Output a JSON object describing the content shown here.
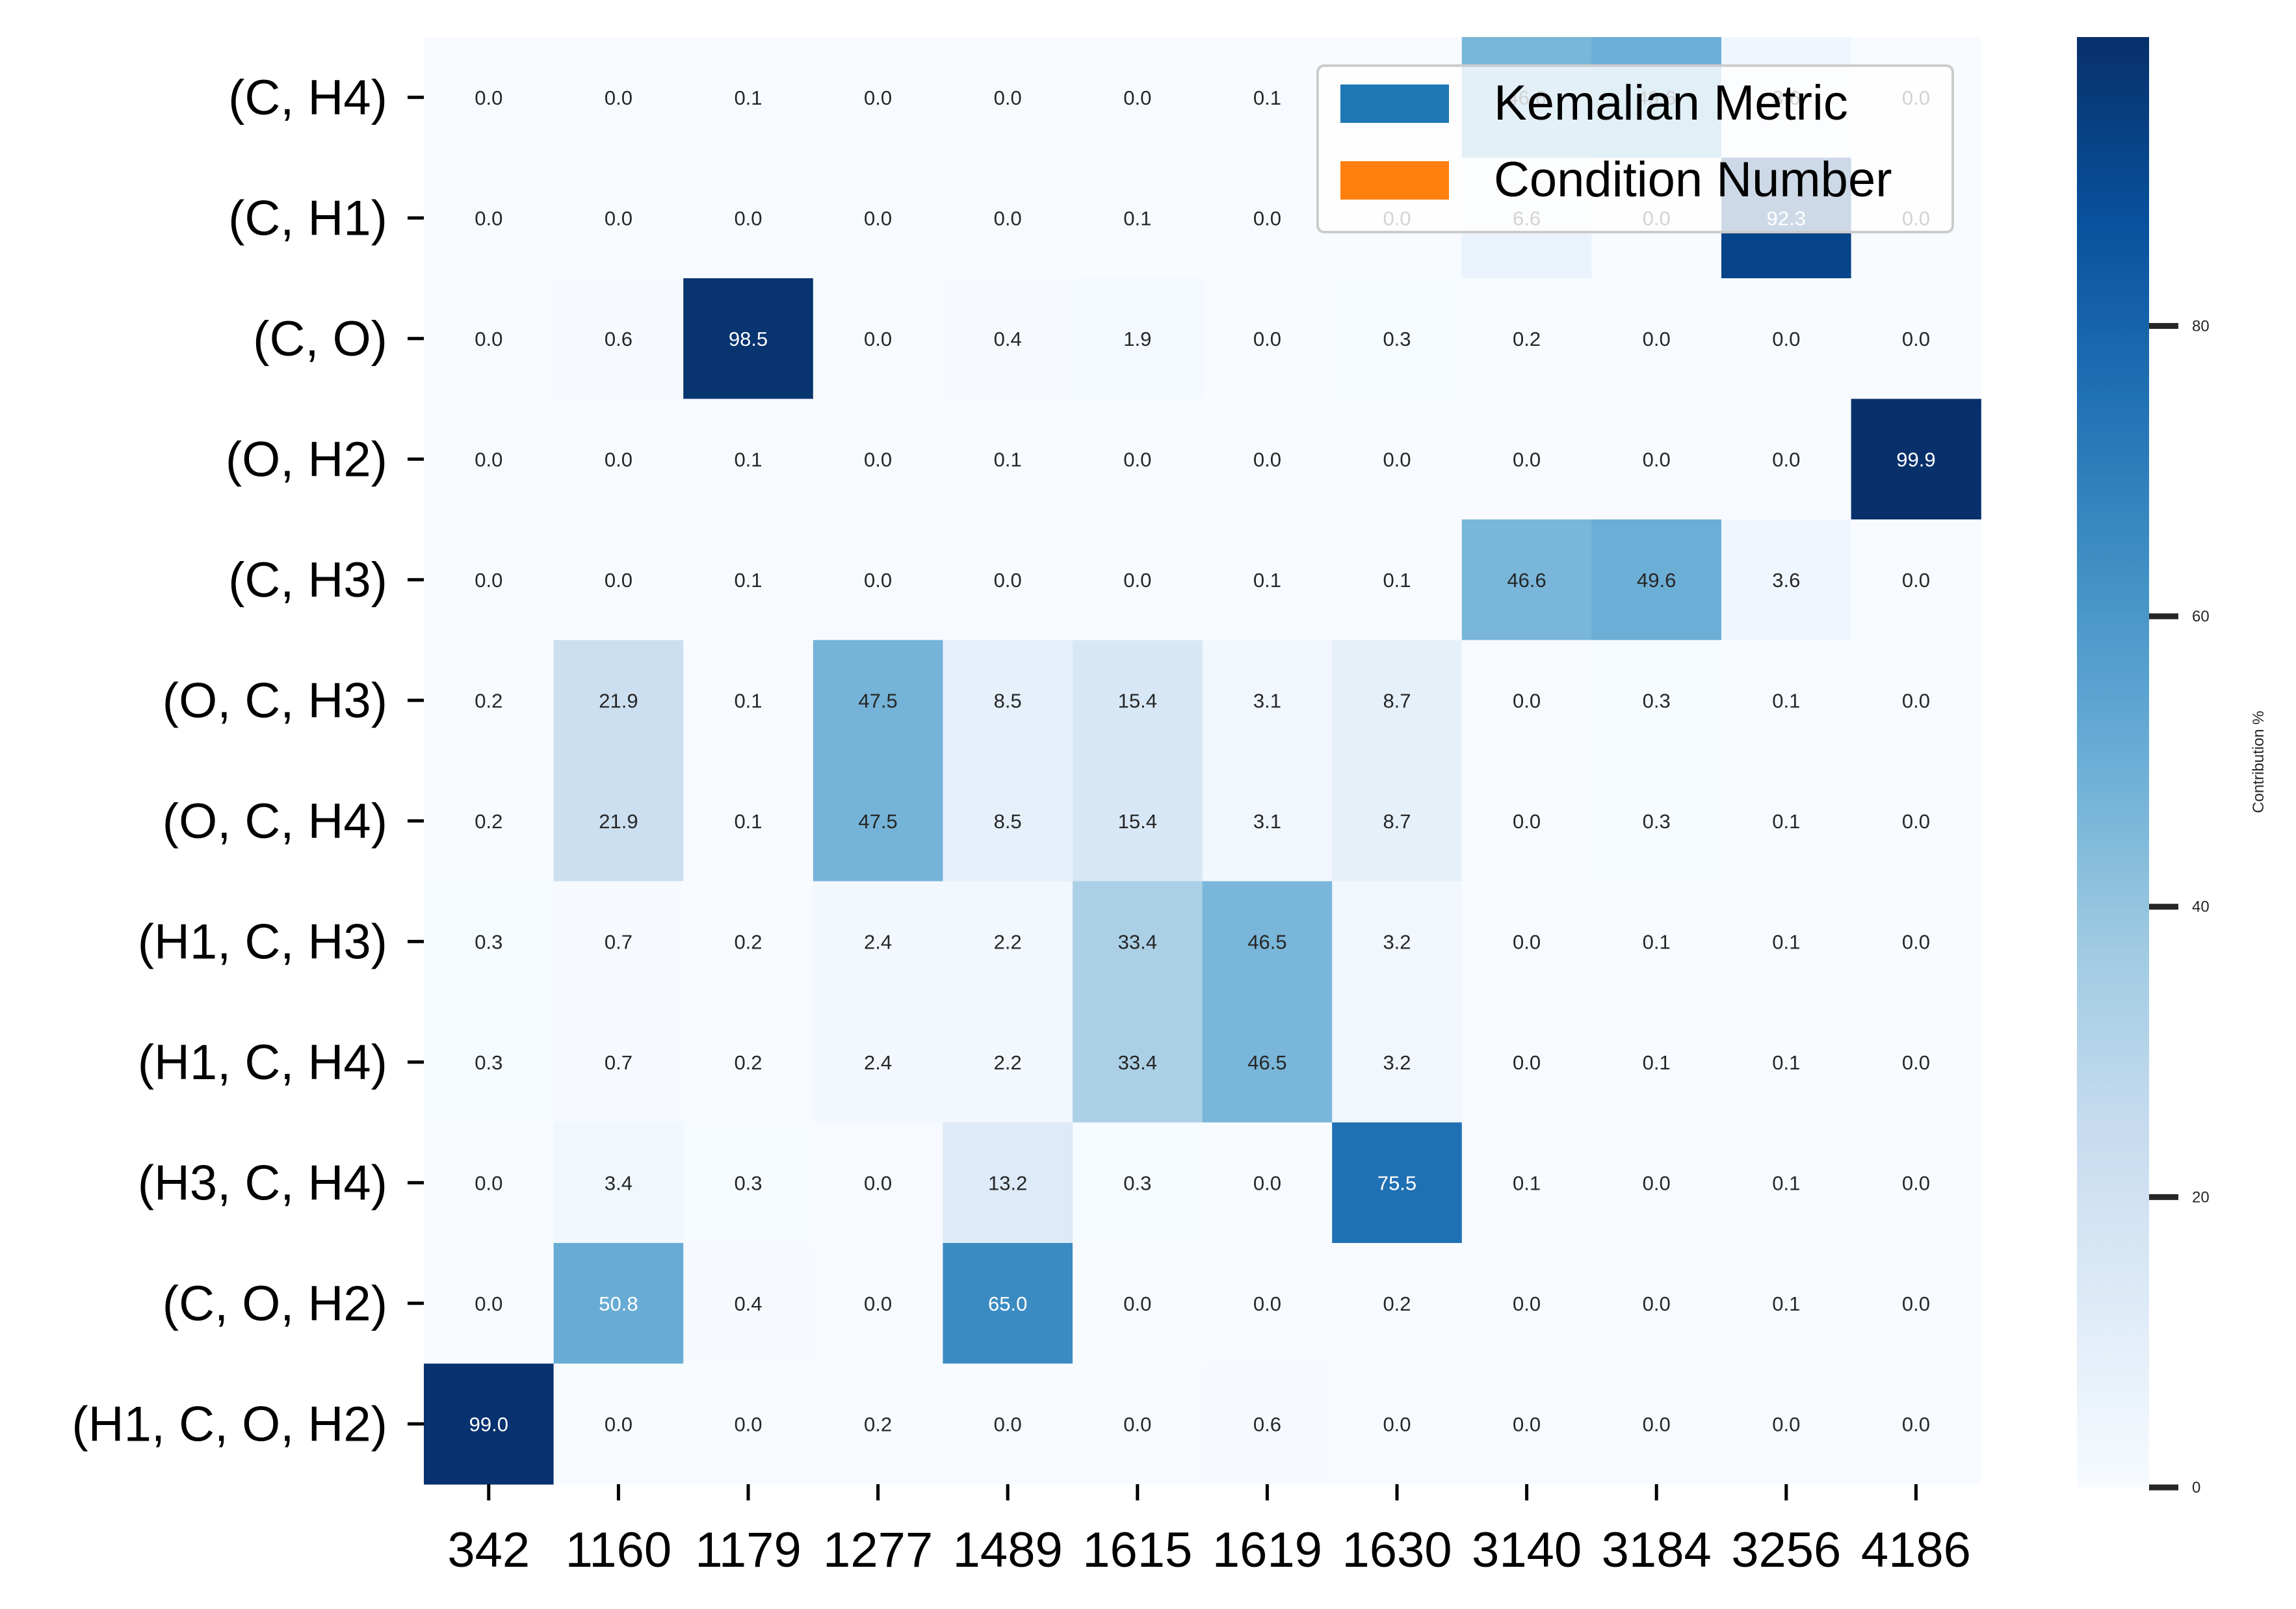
{
  "chart_data": {
    "type": "heatmap",
    "title": "",
    "xlabel": "",
    "ylabel": "",
    "x_categories": [
      "342",
      "1160",
      "1179",
      "1277",
      "1489",
      "1615",
      "1619",
      "1630",
      "3140",
      "3184",
      "3256",
      "4186"
    ],
    "y_categories": [
      "(C, H4)",
      "(C, H1)",
      "(C, O)",
      "(O, H2)",
      "(C, H3)",
      "(O, C, H3)",
      "(O, C, H4)",
      "(H1, C, H3)",
      "(H1, C, H4)",
      "(H3, C, H4)",
      "(C, O, H2)",
      "(H1, C, O, H2)"
    ],
    "values": [
      [
        0.0,
        0.0,
        0.1,
        0.0,
        0.0,
        0.0,
        0.1,
        0.0,
        46.6,
        49.6,
        3.6,
        0.0
      ],
      [
        0.0,
        0.0,
        0.0,
        0.0,
        0.0,
        0.1,
        0.0,
        0.0,
        6.6,
        0.0,
        92.3,
        0.0
      ],
      [
        0.0,
        0.6,
        98.5,
        0.0,
        0.4,
        1.9,
        0.0,
        0.3,
        0.2,
        0.0,
        0.0,
        0.0
      ],
      [
        0.0,
        0.0,
        0.1,
        0.0,
        0.1,
        0.0,
        0.0,
        0.0,
        0.0,
        0.0,
        0.0,
        99.9
      ],
      [
        0.0,
        0.0,
        0.1,
        0.0,
        0.0,
        0.0,
        0.1,
        0.1,
        46.6,
        49.6,
        3.6,
        0.0
      ],
      [
        0.2,
        21.9,
        0.1,
        47.5,
        8.5,
        15.4,
        3.1,
        8.7,
        0.0,
        0.3,
        0.1,
        0.0
      ],
      [
        0.2,
        21.9,
        0.1,
        47.5,
        8.5,
        15.4,
        3.1,
        8.7,
        0.0,
        0.3,
        0.1,
        0.0
      ],
      [
        0.3,
        0.7,
        0.2,
        2.4,
        2.2,
        33.4,
        46.5,
        3.2,
        0.0,
        0.1,
        0.1,
        0.0
      ],
      [
        0.3,
        0.7,
        0.2,
        2.4,
        2.2,
        33.4,
        46.5,
        3.2,
        0.0,
        0.1,
        0.1,
        0.0
      ],
      [
        0.0,
        3.4,
        0.3,
        0.0,
        13.2,
        0.3,
        0.0,
        75.5,
        0.1,
        0.0,
        0.1,
        0.0
      ],
      [
        0.0,
        50.8,
        0.4,
        0.0,
        65.0,
        0.0,
        0.0,
        0.2,
        0.0,
        0.0,
        0.1,
        0.0
      ],
      [
        99.0,
        0.0,
        0.0,
        0.2,
        0.0,
        0.0,
        0.6,
        0.0,
        0.0,
        0.0,
        0.0,
        0.0
      ]
    ],
    "value_format": "0.0",
    "colormap": "Blues",
    "colorscale": {
      "min": 0,
      "max": 99.9
    },
    "colorbar": {
      "label": "Contribution %",
      "ticks": [
        0,
        20,
        40,
        60,
        80
      ],
      "tick_labels": [
        "0",
        "20",
        "40",
        "60",
        "80"
      ]
    },
    "legend": {
      "placement": "top-right",
      "entries": [
        {
          "label": "Kemalian Metric",
          "color": "#1f77b4"
        },
        {
          "label": "Condition Number",
          "color": "#ff7f0e"
        }
      ]
    }
  }
}
